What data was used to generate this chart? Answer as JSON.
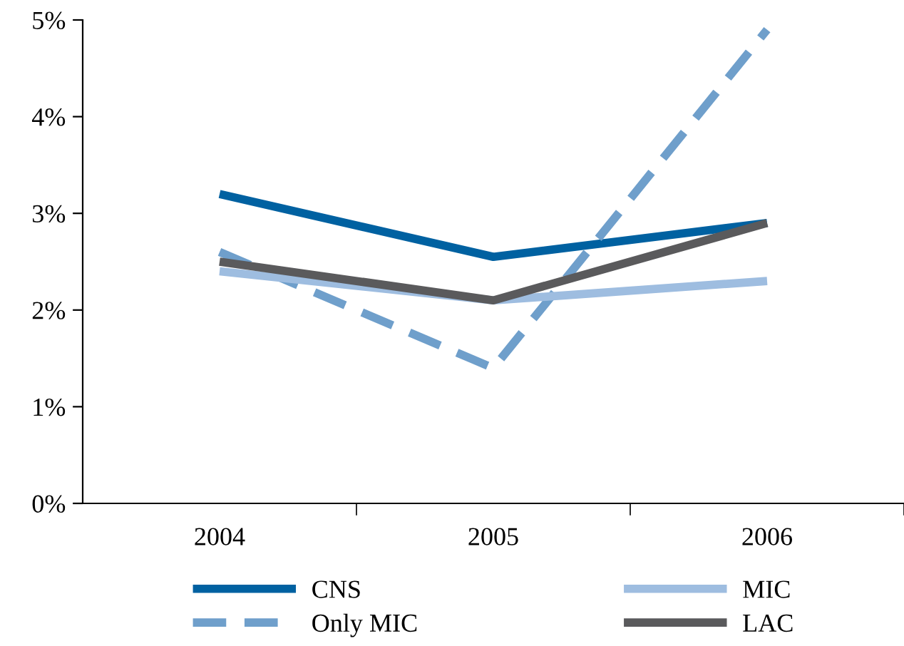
{
  "chart_data": {
    "type": "line",
    "categories": [
      "2004",
      "2005",
      "2006"
    ],
    "series": [
      {
        "name": "CNS",
        "color": "#0061a1",
        "values": [
          3.2,
          2.55,
          2.9
        ]
      },
      {
        "name": "Only MIC",
        "color": "#6f9fcb",
        "values": [
          2.6,
          1.4,
          4.9
        ],
        "line_style": "dashed"
      },
      {
        "name": "MIC",
        "color": "#9ebde0",
        "values": [
          2.4,
          2.1,
          2.3
        ]
      },
      {
        "name": "LAC",
        "color": "#5a5a5c",
        "values": [
          2.5,
          2.1,
          2.9
        ]
      }
    ],
    "ylim": [
      0,
      5
    ],
    "yticks": [
      {
        "value": 0,
        "label": "0%"
      },
      {
        "value": 1,
        "label": "1%"
      },
      {
        "value": 2,
        "label": "2%"
      },
      {
        "value": 3,
        "label": "3%"
      },
      {
        "value": 4,
        "label": "4%"
      },
      {
        "value": 5,
        "label": "5%"
      }
    ],
    "grid": false,
    "legend": "bottom",
    "marker": "none",
    "line_style": "solid"
  }
}
